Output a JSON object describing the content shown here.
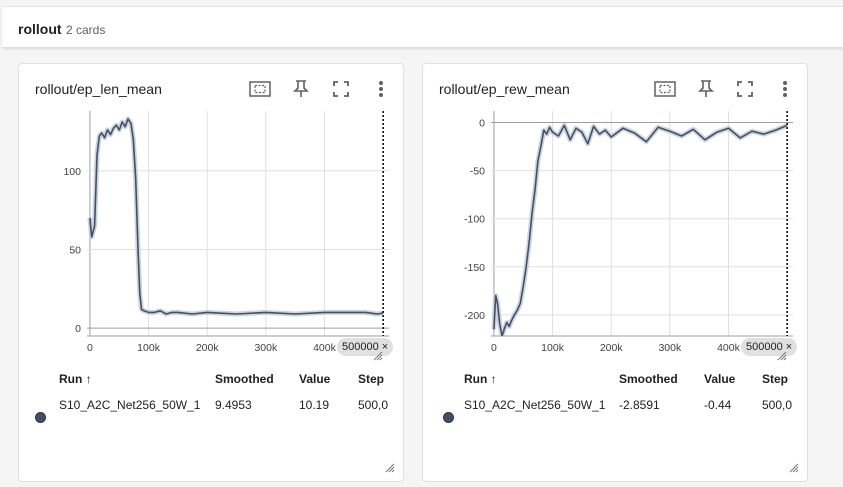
{
  "section": {
    "title": "rollout",
    "count": "2 cards"
  },
  "colors": {
    "series": "#425066",
    "band": "#c5cdd9",
    "grid": "#e0e0e0",
    "axis": "#9e9e9e"
  },
  "icons": [
    "fit-domain-icon",
    "pin-icon",
    "fullscreen-icon",
    "more-vert-icon",
    "resize-grip-icon"
  ],
  "cards": [
    {
      "title": "rollout/ep_len_mean",
      "cursor_label": "500000",
      "cursor_close": "×",
      "table": {
        "headers": {
          "run": "Run ↑",
          "smoothed": "Smoothed",
          "value": "Value",
          "step": "Step"
        },
        "row": {
          "run": "S10_A2C_Net256_50W_1",
          "smoothed": "9.4953",
          "value": "10.19",
          "step": "500,0"
        }
      }
    },
    {
      "title": "rollout/ep_rew_mean",
      "cursor_label": "500000",
      "cursor_close": "×",
      "table": {
        "headers": {
          "run": "Run ↑",
          "smoothed": "Smoothed",
          "value": "Value",
          "step": "Step"
        },
        "row": {
          "run": "S10_A2C_Net256_50W_1",
          "smoothed": "-2.8591",
          "value": "-0.44",
          "step": "500,0"
        }
      }
    }
  ],
  "chart_data": [
    {
      "type": "line",
      "xlabel": "",
      "ylabel": "",
      "xlim": [
        -5000,
        510000
      ],
      "ylim": [
        -5,
        138
      ],
      "x_ticks": [
        0,
        100000,
        200000,
        300000,
        400000
      ],
      "x_tick_labels": [
        "0",
        "100k",
        "200k",
        "300k",
        "400k"
      ],
      "y_ticks": [
        0,
        50,
        100
      ],
      "y_tick_labels": [
        "0",
        "50",
        "100"
      ],
      "cursor_x": 500000,
      "grid": true,
      "series": [
        {
          "x": [
            0,
            3000,
            8000,
            12000,
            16000,
            20000,
            25000,
            30000,
            35000,
            40000,
            45000,
            50000,
            55000,
            60000,
            65000,
            70000,
            74000,
            78000,
            82000,
            85000,
            88000,
            92000,
            100000,
            110000,
            120000,
            130000,
            140000,
            150000,
            175000,
            200000,
            250000,
            300000,
            350000,
            400000,
            450000,
            470000,
            490000,
            500000
          ],
          "values": [
            70,
            58,
            65,
            110,
            122,
            124,
            121,
            126,
            123,
            127,
            129,
            126,
            131,
            128,
            133,
            130,
            120,
            95,
            50,
            22,
            12,
            11,
            10,
            10,
            11,
            9,
            10,
            10,
            9,
            10,
            9,
            10,
            9,
            10,
            10,
            10,
            9,
            9.5
          ]
        }
      ]
    },
    {
      "type": "line",
      "xlabel": "",
      "ylabel": "",
      "xlim": [
        -5000,
        510000
      ],
      "ylim": [
        -222,
        12
      ],
      "x_ticks": [
        0,
        100000,
        200000,
        300000,
        400000
      ],
      "x_tick_labels": [
        "0",
        "100k",
        "200k",
        "300k",
        "400k"
      ],
      "y_ticks": [
        0,
        -50,
        -100,
        -150,
        -200
      ],
      "y_tick_labels": [
        "0",
        "-50",
        "-100",
        "-150",
        "-200"
      ],
      "cursor_x": 500000,
      "grid": true,
      "series": [
        {
          "x": [
            0,
            3000,
            6000,
            10000,
            14000,
            18000,
            22000,
            26000,
            30000,
            35000,
            40000,
            45000,
            50000,
            55000,
            60000,
            65000,
            70000,
            75000,
            80000,
            85000,
            90000,
            95000,
            100000,
            110000,
            120000,
            130000,
            140000,
            150000,
            160000,
            170000,
            180000,
            190000,
            200000,
            220000,
            240000,
            260000,
            280000,
            300000,
            320000,
            340000,
            360000,
            380000,
            400000,
            420000,
            440000,
            460000,
            480000,
            500000
          ],
          "values": [
            -215,
            -180,
            -188,
            -210,
            -222,
            -214,
            -208,
            -212,
            -206,
            -200,
            -195,
            -188,
            -170,
            -150,
            -125,
            -95,
            -70,
            -40,
            -25,
            -8,
            -12,
            -5,
            -10,
            -14,
            -3,
            -18,
            -6,
            -10,
            -22,
            -4,
            -12,
            -8,
            -15,
            -6,
            -11,
            -20,
            -5,
            -9,
            -14,
            -7,
            -18,
            -10,
            -6,
            -16,
            -9,
            -12,
            -8,
            -3
          ]
        }
      ]
    }
  ]
}
